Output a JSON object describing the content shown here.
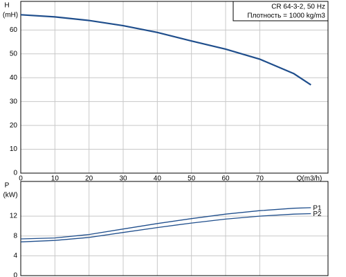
{
  "chart_data": [
    {
      "type": "line",
      "y_label_top": "H",
      "y_label": "(mH)",
      "x_label": "Q(m3/h)",
      "info": [
        "CR 64-3-2, 50 Hz",
        "Плотность = 1000 kg/m3"
      ],
      "x": [
        0,
        10,
        20,
        30,
        40,
        50,
        60,
        70,
        80,
        85
      ],
      "series": [
        {
          "name": "H",
          "color": "#1f4e8c",
          "values": [
            66.4,
            65.5,
            64,
            61.8,
            59,
            55.4,
            52,
            47.8,
            41.7,
            37
          ]
        }
      ],
      "xlim": [
        0,
        90
      ],
      "xticks": [
        0,
        10,
        20,
        30,
        40,
        50,
        60,
        70
      ],
      "ylim": [
        0,
        72
      ],
      "yticks": [
        0,
        10,
        20,
        30,
        40,
        50,
        60
      ],
      "grid": true
    },
    {
      "type": "line",
      "y_label_top": "P",
      "y_label": "(kW)",
      "x": [
        0,
        10,
        20,
        30,
        40,
        50,
        60,
        70,
        80,
        85
      ],
      "series": [
        {
          "name": "P1",
          "color": "#1f4e8c",
          "values": [
            7.4,
            7.6,
            8.3,
            9.4,
            10.5,
            11.5,
            12.4,
            13.1,
            13.6,
            13.7
          ]
        },
        {
          "name": "P2",
          "color": "#1f4e8c",
          "values": [
            6.8,
            7.1,
            7.7,
            8.7,
            9.7,
            10.6,
            11.4,
            12.0,
            12.4,
            12.5
          ]
        }
      ],
      "xlim": [
        0,
        90
      ],
      "xticks": [
        0,
        10,
        20,
        30,
        40,
        50,
        60,
        70
      ],
      "ylim": [
        0,
        19
      ],
      "yticks": [
        0,
        4,
        8,
        12
      ],
      "grid": true
    }
  ]
}
